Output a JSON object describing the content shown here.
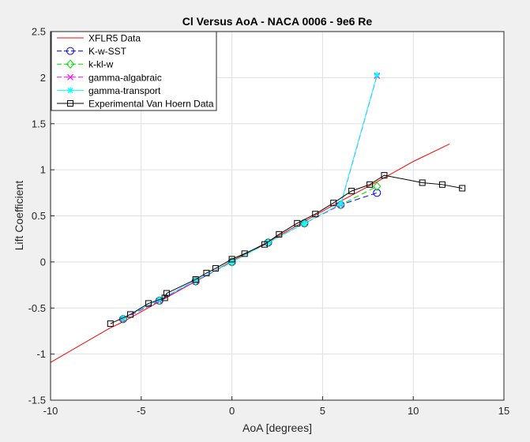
{
  "chart_data": {
    "type": "line",
    "title": "Cl Versus AoA - NACA 0006 - 9e6 Re",
    "xlabel": "AoA [degrees]",
    "ylabel": "Lift Coefficient",
    "xlim": [
      -10,
      15
    ],
    "ylim": [
      -1.5,
      2.5
    ],
    "xticks": [
      -10,
      -5,
      0,
      5,
      10,
      15
    ],
    "yticks": [
      -1.5,
      -1,
      -0.5,
      0,
      0.5,
      1,
      1.5,
      2,
      2.5
    ],
    "xtick_labels": [
      "-10",
      "-5",
      "0",
      "5",
      "10",
      "15"
    ],
    "ytick_labels": [
      "-1.5",
      "-1",
      "-0.5",
      "0",
      "0.5",
      "1",
      "1.5",
      "2",
      "2.5"
    ],
    "grid": true,
    "legend_position": "top-left",
    "series": [
      {
        "name": "XFLR5 Data",
        "color": "#ff0000",
        "line": "solid",
        "marker": "none",
        "x": [
          -10,
          -6.75,
          -6,
          -4,
          -2,
          0,
          2,
          4,
          6,
          8,
          10,
          12
        ],
        "y": [
          -1.09,
          -0.72,
          -0.65,
          -0.43,
          -0.21,
          0.01,
          0.22,
          0.44,
          0.66,
          0.87,
          1.09,
          1.28
        ]
      },
      {
        "name": "K-w-SST",
        "color": "#0000ff",
        "line": "dashed",
        "marker": "circle",
        "x": [
          -6,
          -4,
          -2,
          0,
          2,
          4,
          6,
          8
        ],
        "y": [
          -0.62,
          -0.42,
          -0.21,
          0.0,
          0.21,
          0.42,
          0.62,
          0.75
        ]
      },
      {
        "name": "k-kl-w",
        "color": "#00dd00",
        "line": "dashed",
        "marker": "diamond",
        "x": [
          -6,
          -4,
          -2,
          0,
          2,
          4,
          6,
          8
        ],
        "y": [
          -0.62,
          -0.42,
          -0.21,
          0.0,
          0.21,
          0.42,
          0.62,
          0.82
        ]
      },
      {
        "name": "gamma-algabraic",
        "color": "#ff00ff",
        "line": "dashed",
        "marker": "x",
        "x": [
          -6,
          -4,
          -2,
          0,
          2,
          4,
          6,
          8
        ],
        "y": [
          -0.62,
          -0.42,
          -0.21,
          0.0,
          0.21,
          0.42,
          0.62,
          2.02
        ]
      },
      {
        "name": "gamma-transport",
        "color": "#00ffff",
        "line": "solid",
        "marker": "asterisk",
        "x": [
          -6,
          -4,
          -2,
          0,
          2,
          4,
          6,
          8
        ],
        "y": [
          -0.61,
          -0.41,
          -0.2,
          0.0,
          0.21,
          0.42,
          0.63,
          2.03
        ]
      },
      {
        "name": "Experimental Van Hoern Data",
        "color": "#000000",
        "line": "solid",
        "marker": "square",
        "x": [
          -6.7,
          -5.6,
          -4.6,
          -3.7,
          -3.6,
          -2.0,
          -1.4,
          -0.9,
          0.0,
          0.7,
          1.8,
          2.6,
          3.6,
          4.6,
          5.6,
          6.6,
          7.6,
          8.4,
          10.5,
          11.6,
          12.7
        ],
        "y": [
          -0.67,
          -0.57,
          -0.45,
          -0.39,
          -0.34,
          -0.19,
          -0.12,
          -0.07,
          0.03,
          0.09,
          0.19,
          0.3,
          0.42,
          0.52,
          0.64,
          0.77,
          0.84,
          0.94,
          0.86,
          0.84,
          0.8
        ]
      }
    ]
  }
}
